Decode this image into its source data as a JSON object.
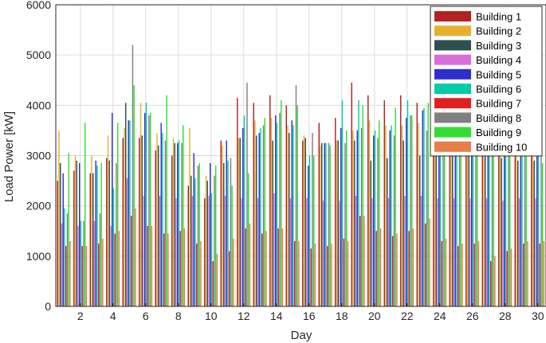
{
  "chart_data": {
    "type": "bar",
    "title": "",
    "xlabel": "Day",
    "ylabel": "Load Power [kW]",
    "ylim": [
      0,
      6000
    ],
    "xlim": [
      0.5,
      30.5
    ],
    "grid": true,
    "legend_position": "top-right",
    "x_ticks": [
      "2",
      "4",
      "6",
      "8",
      "10",
      "12",
      "14",
      "16",
      "18",
      "20",
      "22",
      "24",
      "26",
      "28",
      "30"
    ],
    "y_ticks": [
      "0",
      "1000",
      "2000",
      "3000",
      "4000",
      "5000",
      "6000"
    ],
    "x": [
      1,
      2,
      3,
      4,
      5,
      6,
      7,
      8,
      9,
      10,
      11,
      12,
      13,
      14,
      15,
      16,
      17,
      18,
      19,
      20,
      21,
      22,
      23,
      24,
      25,
      26,
      27,
      28,
      29,
      30
    ],
    "series": [
      {
        "name": "Building 1",
        "color": "#b22222",
        "values": [
          2500,
          2700,
          2650,
          2950,
          3350,
          3350,
          3100,
          3000,
          2400,
          2150,
          3300,
          4150,
          4050,
          4200,
          4000,
          3300,
          3650,
          3750,
          4450,
          4200,
          4100,
          4200,
          4050,
          3950,
          3500,
          3900,
          3600,
          3800,
          3500,
          3300
        ]
      },
      {
        "name": "Building 2",
        "color": "#e8b030",
        "values": [
          3500,
          3000,
          3000,
          3400,
          3550,
          4050,
          3450,
          3350,
          3550,
          2600,
          3200,
          3350,
          3700,
          3750,
          3600,
          3400,
          3200,
          3300,
          3500,
          3700,
          3600,
          3600,
          3650,
          3450,
          3400,
          3300,
          3250,
          3300,
          3400,
          3500
        ]
      },
      {
        "name": "Building 3",
        "color": "#2f4f4f",
        "values": [
          2850,
          2900,
          2650,
          2900,
          4050,
          3400,
          3200,
          3250,
          2600,
          2500,
          2850,
          3350,
          3400,
          3300,
          3450,
          3350,
          3250,
          3300,
          3300,
          2900,
          2950,
          3300,
          3000,
          3050,
          3350,
          3150,
          3050,
          2950,
          2900,
          2900
        ]
      },
      {
        "name": "Building 4",
        "color": "#d86ed8",
        "values": [
          1650,
          1600,
          1700,
          1600,
          2550,
          2200,
          2200,
          2150,
          2200,
          2200,
          2200,
          2150,
          2150,
          2250,
          2150,
          2150,
          2100,
          2100,
          2200,
          2150,
          2150,
          2200,
          2200,
          2150,
          2150,
          2150,
          2150,
          2100,
          2150,
          2150
        ]
      },
      {
        "name": "Building 5",
        "color": "#2f2fd0",
        "values": [
          2650,
          2850,
          2900,
          3850,
          3700,
          3850,
          3650,
          3250,
          3050,
          2850,
          3300,
          3550,
          3450,
          3800,
          3700,
          2800,
          3250,
          3550,
          3500,
          3400,
          3500,
          3750,
          3900,
          3600,
          3700,
          3650,
          3600,
          3700,
          3550,
          3550
        ]
      },
      {
        "name": "Building 6",
        "color": "#00ccaa",
        "values": [
          1950,
          1700,
          2800,
          2350,
          3700,
          4050,
          3450,
          3300,
          2550,
          2250,
          2900,
          3800,
          3550,
          3650,
          3600,
          3000,
          3250,
          4100,
          4100,
          3500,
          3600,
          4100,
          3950,
          3700,
          3500,
          3650,
          3700,
          3750,
          3500,
          3500
        ]
      },
      {
        "name": "Building 7",
        "color": "#e02020",
        "values": [
          1200,
          1200,
          1250,
          1450,
          1800,
          1600,
          1450,
          1500,
          1250,
          900,
          1100,
          1550,
          1450,
          1550,
          1300,
          1150,
          1200,
          1350,
          1800,
          1500,
          1400,
          1500,
          1650,
          1300,
          1200,
          1250,
          900,
          1100,
          1250,
          1250
        ]
      },
      {
        "name": "Building 8",
        "color": "#808080",
        "values": [
          1850,
          1700,
          1850,
          2850,
          5200,
          3800,
          3300,
          3250,
          2800,
          2600,
          2950,
          4450,
          3600,
          3850,
          4400,
          3450,
          3250,
          3250,
          3550,
          3350,
          3400,
          3800,
          3500,
          3450,
          3450,
          3350,
          3300,
          3250,
          3250,
          3200
        ]
      },
      {
        "name": "Building 9",
        "color": "#33dd33",
        "values": [
          3050,
          3650,
          2850,
          3650,
          4400,
          3850,
          4200,
          3600,
          2850,
          2800,
          2400,
          2650,
          3750,
          4100,
          4000,
          3000,
          3200,
          3500,
          4000,
          3700,
          3950,
          3800,
          4050,
          4100,
          3900,
          3700,
          3950,
          3850,
          3700,
          2850
        ]
      },
      {
        "name": "Building 10",
        "color": "#e87e4a",
        "values": [
          1300,
          1200,
          1350,
          1500,
          1950,
          1600,
          1450,
          1550,
          1300,
          1050,
          1350,
          1650,
          1500,
          1550,
          1300,
          1250,
          1250,
          1300,
          1800,
          1550,
          1450,
          1550,
          1750,
          1350,
          1250,
          1300,
          1000,
          1150,
          1300,
          1300
        ]
      }
    ]
  }
}
